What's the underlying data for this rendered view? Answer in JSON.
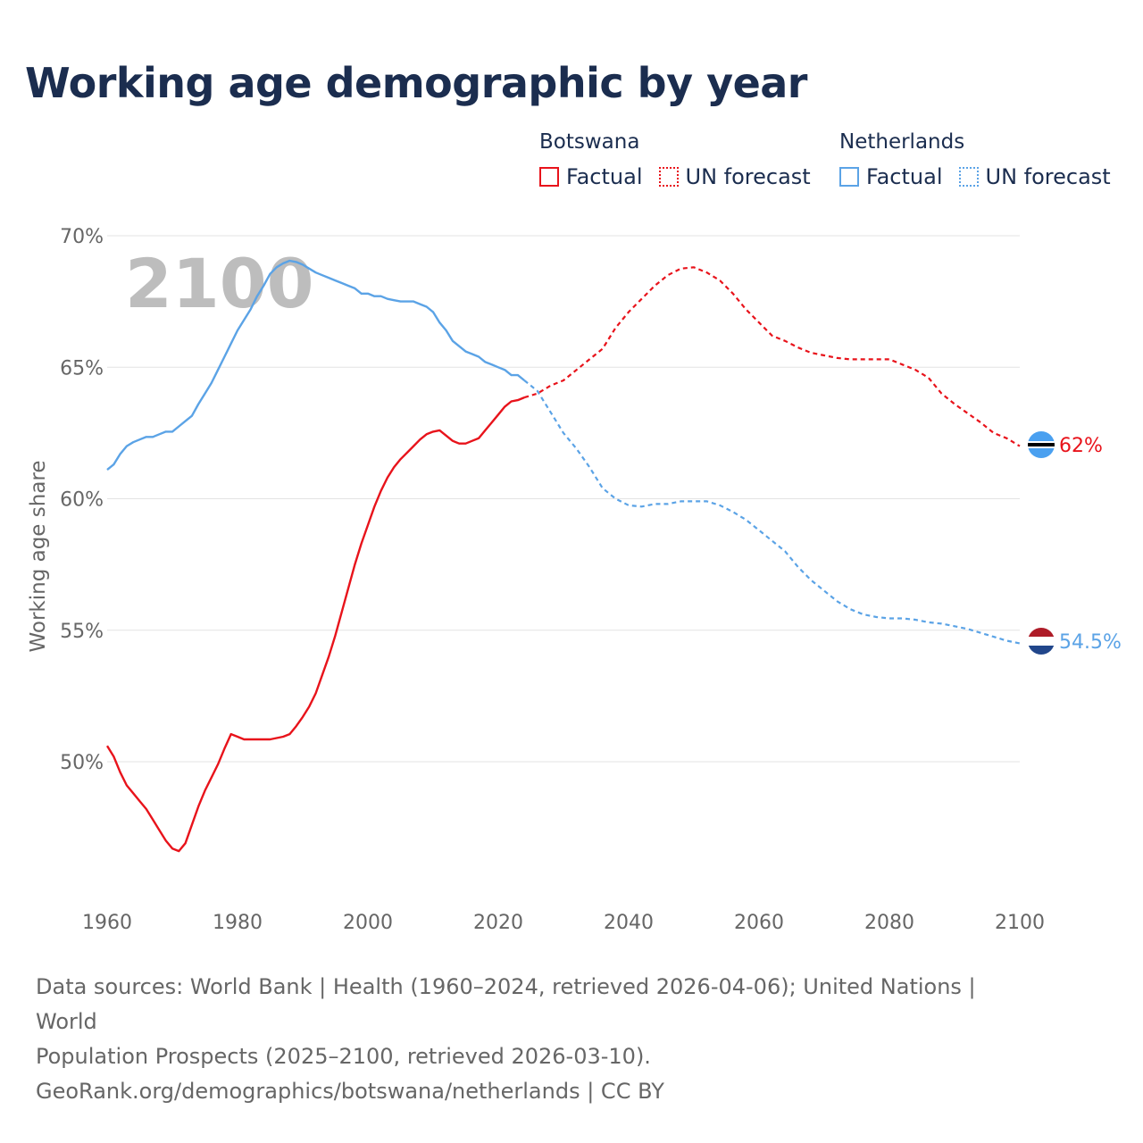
{
  "title": "Working age demographic by year",
  "legend": {
    "groups": [
      {
        "name": "Botswana",
        "factual_label": "Factual",
        "forecast_label": "UN forecast"
      },
      {
        "name": "Netherlands",
        "factual_label": "Factual",
        "forecast_label": "UN forecast"
      }
    ]
  },
  "year_watermark": "2100",
  "source": {
    "line1": "Data sources: World Bank | Health (1960–2024, retrieved 2026-04-06); United Nations | World",
    "line2": "Population Prospects (2025–2100, retrieved 2026-03-10).",
    "line3": "GeoRank.org/demographics/botswana/netherlands | CC BY"
  },
  "chart_data": {
    "type": "line",
    "title": "Working age demographic by year",
    "xlabel": "",
    "ylabel": "Working age share",
    "xlim": [
      1960,
      2100
    ],
    "ylim": [
      45,
      70
    ],
    "x_ticks": [
      1960,
      1980,
      2000,
      2020,
      2040,
      2060,
      2080,
      2100
    ],
    "y_ticks": [
      50,
      55,
      60,
      65,
      70
    ],
    "y_tick_labels": [
      "50%",
      "55%",
      "60%",
      "65%",
      "70%"
    ],
    "grid": true,
    "legend_position": "top-right",
    "series": [
      {
        "name": "Botswana",
        "color": "#e8131b",
        "end_label": "62%",
        "flag": "botswana",
        "factual": [
          [
            1960,
            50.6
          ],
          [
            1961,
            50.2
          ],
          [
            1962,
            49.6
          ],
          [
            1963,
            49.1
          ],
          [
            1964,
            48.8
          ],
          [
            1965,
            48.5
          ],
          [
            1966,
            48.2
          ],
          [
            1967,
            47.8
          ],
          [
            1968,
            47.4
          ],
          [
            1969,
            47.0
          ],
          [
            1970,
            46.7
          ],
          [
            1971,
            46.6
          ],
          [
            1972,
            46.9
          ],
          [
            1973,
            47.6
          ],
          [
            1974,
            48.3
          ],
          [
            1975,
            48.9
          ],
          [
            1976,
            49.4
          ],
          [
            1977,
            49.9
          ],
          [
            1978,
            50.5
          ],
          [
            1979,
            51.05
          ],
          [
            1980,
            50.95
          ],
          [
            1981,
            50.85
          ],
          [
            1982,
            50.85
          ],
          [
            1983,
            50.85
          ],
          [
            1984,
            50.85
          ],
          [
            1985,
            50.85
          ],
          [
            1986,
            50.9
          ],
          [
            1987,
            50.95
          ],
          [
            1988,
            51.05
          ],
          [
            1989,
            51.35
          ],
          [
            1990,
            51.7
          ],
          [
            1991,
            52.1
          ],
          [
            1992,
            52.6
          ],
          [
            1993,
            53.3
          ],
          [
            1994,
            54.0
          ],
          [
            1995,
            54.8
          ],
          [
            1996,
            55.7
          ],
          [
            1997,
            56.6
          ],
          [
            1998,
            57.5
          ],
          [
            1999,
            58.3
          ],
          [
            2000,
            59.0
          ],
          [
            2001,
            59.7
          ],
          [
            2002,
            60.3
          ],
          [
            2003,
            60.8
          ],
          [
            2004,
            61.2
          ],
          [
            2005,
            61.5
          ],
          [
            2006,
            61.75
          ],
          [
            2007,
            62.0
          ],
          [
            2008,
            62.25
          ],
          [
            2009,
            62.45
          ],
          [
            2010,
            62.55
          ],
          [
            2011,
            62.6
          ],
          [
            2012,
            62.4
          ],
          [
            2013,
            62.2
          ],
          [
            2014,
            62.1
          ],
          [
            2015,
            62.1
          ],
          [
            2016,
            62.2
          ],
          [
            2017,
            62.3
          ],
          [
            2018,
            62.6
          ],
          [
            2019,
            62.9
          ],
          [
            2020,
            63.2
          ],
          [
            2021,
            63.5
          ],
          [
            2022,
            63.7
          ],
          [
            2023,
            63.75
          ],
          [
            2024,
            63.85
          ]
        ],
        "forecast": [
          [
            2024,
            63.85
          ],
          [
            2026,
            64.0
          ],
          [
            2028,
            64.3
          ],
          [
            2030,
            64.5
          ],
          [
            2032,
            64.9
          ],
          [
            2034,
            65.3
          ],
          [
            2036,
            65.7
          ],
          [
            2038,
            66.5
          ],
          [
            2040,
            67.1
          ],
          [
            2042,
            67.6
          ],
          [
            2044,
            68.1
          ],
          [
            2046,
            68.5
          ],
          [
            2048,
            68.75
          ],
          [
            2050,
            68.8
          ],
          [
            2052,
            68.6
          ],
          [
            2054,
            68.3
          ],
          [
            2056,
            67.8
          ],
          [
            2058,
            67.2
          ],
          [
            2060,
            66.7
          ],
          [
            2062,
            66.2
          ],
          [
            2064,
            66.0
          ],
          [
            2066,
            65.75
          ],
          [
            2068,
            65.55
          ],
          [
            2070,
            65.45
          ],
          [
            2072,
            65.35
          ],
          [
            2074,
            65.3
          ],
          [
            2076,
            65.3
          ],
          [
            2078,
            65.3
          ],
          [
            2080,
            65.3
          ],
          [
            2082,
            65.1
          ],
          [
            2084,
            64.9
          ],
          [
            2086,
            64.6
          ],
          [
            2088,
            64.0
          ],
          [
            2090,
            63.6
          ],
          [
            2092,
            63.25
          ],
          [
            2094,
            62.9
          ],
          [
            2096,
            62.5
          ],
          [
            2098,
            62.3
          ],
          [
            2100,
            62.0
          ]
        ]
      },
      {
        "name": "Netherlands",
        "color": "#5ba3e6",
        "end_label": "54.5%",
        "flag": "netherlands",
        "factual": [
          [
            1960,
            61.1
          ],
          [
            1961,
            61.3
          ],
          [
            1962,
            61.7
          ],
          [
            1963,
            62.0
          ],
          [
            1964,
            62.15
          ],
          [
            1965,
            62.25
          ],
          [
            1966,
            62.35
          ],
          [
            1967,
            62.35
          ],
          [
            1968,
            62.45
          ],
          [
            1969,
            62.55
          ],
          [
            1970,
            62.55
          ],
          [
            1971,
            62.75
          ],
          [
            1972,
            62.95
          ],
          [
            1973,
            63.15
          ],
          [
            1974,
            63.6
          ],
          [
            1975,
            64.0
          ],
          [
            1976,
            64.4
          ],
          [
            1977,
            64.9
          ],
          [
            1978,
            65.4
          ],
          [
            1979,
            65.9
          ],
          [
            1980,
            66.4
          ],
          [
            1981,
            66.8
          ],
          [
            1982,
            67.2
          ],
          [
            1983,
            67.7
          ],
          [
            1984,
            68.1
          ],
          [
            1985,
            68.55
          ],
          [
            1986,
            68.8
          ],
          [
            1987,
            68.95
          ],
          [
            1988,
            69.05
          ],
          [
            1989,
            69.0
          ],
          [
            1990,
            68.9
          ],
          [
            1991,
            68.75
          ],
          [
            1992,
            68.6
          ],
          [
            1993,
            68.5
          ],
          [
            1994,
            68.4
          ],
          [
            1995,
            68.3
          ],
          [
            1996,
            68.2
          ],
          [
            1997,
            68.1
          ],
          [
            1998,
            68.0
          ],
          [
            1999,
            67.8
          ],
          [
            2000,
            67.8
          ],
          [
            2001,
            67.7
          ],
          [
            2002,
            67.7
          ],
          [
            2003,
            67.6
          ],
          [
            2004,
            67.55
          ],
          [
            2005,
            67.5
          ],
          [
            2006,
            67.5
          ],
          [
            2007,
            67.5
          ],
          [
            2008,
            67.4
          ],
          [
            2009,
            67.3
          ],
          [
            2010,
            67.1
          ],
          [
            2011,
            66.7
          ],
          [
            2012,
            66.4
          ],
          [
            2013,
            66.0
          ],
          [
            2014,
            65.8
          ],
          [
            2015,
            65.6
          ],
          [
            2016,
            65.5
          ],
          [
            2017,
            65.4
          ],
          [
            2018,
            65.2
          ],
          [
            2019,
            65.1
          ],
          [
            2020,
            65.0
          ],
          [
            2021,
            64.9
          ],
          [
            2022,
            64.7
          ],
          [
            2023,
            64.7
          ],
          [
            2024,
            64.5
          ]
        ],
        "forecast": [
          [
            2024,
            64.5
          ],
          [
            2026,
            64.1
          ],
          [
            2028,
            63.3
          ],
          [
            2030,
            62.5
          ],
          [
            2032,
            61.9
          ],
          [
            2034,
            61.2
          ],
          [
            2036,
            60.4
          ],
          [
            2038,
            60.0
          ],
          [
            2040,
            59.75
          ],
          [
            2042,
            59.7
          ],
          [
            2044,
            59.8
          ],
          [
            2046,
            59.8
          ],
          [
            2048,
            59.9
          ],
          [
            2050,
            59.9
          ],
          [
            2052,
            59.9
          ],
          [
            2054,
            59.75
          ],
          [
            2056,
            59.5
          ],
          [
            2058,
            59.2
          ],
          [
            2060,
            58.8
          ],
          [
            2062,
            58.4
          ],
          [
            2064,
            58.0
          ],
          [
            2066,
            57.4
          ],
          [
            2068,
            56.9
          ],
          [
            2070,
            56.5
          ],
          [
            2072,
            56.1
          ],
          [
            2074,
            55.8
          ],
          [
            2076,
            55.6
          ],
          [
            2078,
            55.5
          ],
          [
            2080,
            55.45
          ],
          [
            2082,
            55.45
          ],
          [
            2084,
            55.4
          ],
          [
            2086,
            55.3
          ],
          [
            2088,
            55.25
          ],
          [
            2090,
            55.15
          ],
          [
            2092,
            55.05
          ],
          [
            2094,
            54.9
          ],
          [
            2096,
            54.75
          ],
          [
            2098,
            54.6
          ],
          [
            2100,
            54.5
          ]
        ]
      }
    ]
  }
}
